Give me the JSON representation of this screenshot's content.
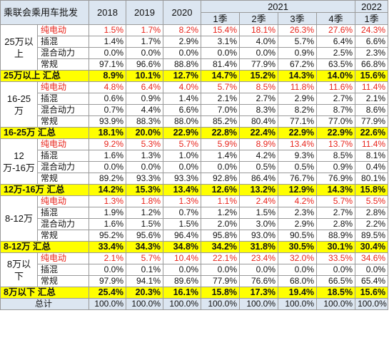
{
  "table": {
    "title": "乘联会乘用车批发",
    "years": [
      "2018",
      "2019",
      "2020"
    ],
    "year_2021": "2021",
    "year_2022": "2022",
    "quarters_2021": [
      "1季",
      "2季",
      "3季",
      "4季"
    ],
    "quarter_2022": "1季",
    "colors": {
      "highlight": "#ffff00",
      "header_bg": "#dce6f1",
      "red_text": "#e8241b",
      "border": "#9a9a9a"
    },
    "groups": [
      {
        "label": "25万以上",
        "rows": [
          {
            "label": "纯电动",
            "red": true,
            "values": [
              "1.5%",
              "1.7%",
              "8.2%",
              "15.4%",
              "18.1%",
              "26.3%",
              "27.6%",
              "24.3%"
            ]
          },
          {
            "label": "插混",
            "red": false,
            "values": [
              "1.4%",
              "1.7%",
              "2.9%",
              "3.1%",
              "4.0%",
              "5.7%",
              "6.4%",
              "6.6%"
            ]
          },
          {
            "label": "混合动力",
            "red": false,
            "values": [
              "0.0%",
              "0.0%",
              "0.0%",
              "0.0%",
              "0.0%",
              "0.9%",
              "2.5%",
              "2.3%"
            ]
          },
          {
            "label": "常规",
            "red": false,
            "values": [
              "97.1%",
              "96.6%",
              "88.8%",
              "81.4%",
              "77.9%",
              "67.2%",
              "63.5%",
              "66.8%"
            ]
          }
        ],
        "subtotal": {
          "label": "25万以上 汇总",
          "values": [
            "8.9%",
            "10.1%",
            "12.7%",
            "14.7%",
            "15.2%",
            "14.3%",
            "14.0%",
            "15.6%"
          ]
        }
      },
      {
        "label": "16-25万",
        "rows": [
          {
            "label": "纯电动",
            "red": true,
            "values": [
              "4.8%",
              "6.4%",
              "4.0%",
              "5.7%",
              "8.5%",
              "11.8%",
              "11.6%",
              "11.4%"
            ]
          },
          {
            "label": "插混",
            "red": false,
            "values": [
              "0.6%",
              "0.9%",
              "1.4%",
              "2.1%",
              "2.7%",
              "2.9%",
              "2.7%",
              "2.1%"
            ]
          },
          {
            "label": "混合动力",
            "red": false,
            "values": [
              "0.7%",
              "4.4%",
              "6.6%",
              "7.0%",
              "8.3%",
              "8.2%",
              "8.7%",
              "8.6%"
            ]
          },
          {
            "label": "常规",
            "red": false,
            "values": [
              "93.9%",
              "88.3%",
              "88.0%",
              "85.2%",
              "80.4%",
              "77.1%",
              "77.0%",
              "77.9%"
            ]
          }
        ],
        "subtotal": {
          "label": "16-25万 汇总",
          "values": [
            "18.1%",
            "20.0%",
            "22.9%",
            "22.8%",
            "22.4%",
            "22.9%",
            "22.9%",
            "22.6%"
          ]
        }
      },
      {
        "label": "12万-16万",
        "rows": [
          {
            "label": "纯电动",
            "red": true,
            "values": [
              "9.2%",
              "5.3%",
              "5.7%",
              "5.9%",
              "8.9%",
              "13.4%",
              "13.7%",
              "11.4%"
            ]
          },
          {
            "label": "插混",
            "red": false,
            "values": [
              "1.6%",
              "1.3%",
              "1.0%",
              "1.4%",
              "4.2%",
              "9.3%",
              "8.5%",
              "8.1%"
            ]
          },
          {
            "label": "混合动力",
            "red": false,
            "values": [
              "0.0%",
              "0.0%",
              "0.0%",
              "0.0%",
              "0.5%",
              "0.5%",
              "0.9%",
              "0.4%"
            ]
          },
          {
            "label": "常规",
            "red": false,
            "values": [
              "89.2%",
              "93.3%",
              "93.3%",
              "92.8%",
              "86.4%",
              "76.7%",
              "76.9%",
              "80.1%"
            ]
          }
        ],
        "subtotal": {
          "label": "12万-16万 汇总",
          "values": [
            "14.2%",
            "15.3%",
            "13.4%",
            "12.6%",
            "13.2%",
            "12.9%",
            "14.3%",
            "15.8%"
          ]
        }
      },
      {
        "label": "8-12万",
        "rows": [
          {
            "label": "纯电动",
            "red": true,
            "values": [
              "1.3%",
              "1.8%",
              "1.3%",
              "1.1%",
              "2.4%",
              "4.2%",
              "5.7%",
              "5.5%"
            ]
          },
          {
            "label": "插混",
            "red": false,
            "values": [
              "1.9%",
              "1.2%",
              "0.7%",
              "1.2%",
              "1.5%",
              "2.3%",
              "2.7%",
              "2.8%"
            ]
          },
          {
            "label": "混合动力",
            "red": false,
            "values": [
              "1.6%",
              "1.5%",
              "1.5%",
              "2.0%",
              "3.0%",
              "2.9%",
              "2.8%",
              "2.2%"
            ]
          },
          {
            "label": "常规",
            "red": false,
            "values": [
              "95.2%",
              "95.6%",
              "96.4%",
              "95.8%",
              "93.0%",
              "90.5%",
              "88.9%",
              "89.5%"
            ]
          }
        ],
        "subtotal": {
          "label": "8-12万 汇总",
          "values": [
            "33.4%",
            "34.3%",
            "34.8%",
            "34.2%",
            "31.8%",
            "30.5%",
            "30.1%",
            "30.4%"
          ]
        }
      },
      {
        "label": "8万以下",
        "rows": [
          {
            "label": "纯电动",
            "red": true,
            "values": [
              "2.1%",
              "5.7%",
              "10.4%",
              "22.1%",
              "23.4%",
              "32.0%",
              "33.5%",
              "34.6%"
            ]
          },
          {
            "label": "插混",
            "red": false,
            "values": [
              "0.0%",
              "0.1%",
              "0.0%",
              "0.0%",
              "0.0%",
              "0.0%",
              "0.0%",
              "0.0%"
            ]
          },
          {
            "label": "常规",
            "red": false,
            "values": [
              "97.9%",
              "94.1%",
              "89.6%",
              "77.9%",
              "76.6%",
              "68.0%",
              "66.5%",
              "65.4%"
            ]
          }
        ],
        "subtotal": {
          "label": "8万以下 汇总",
          "values": [
            "25.4%",
            "20.3%",
            "16.1%",
            "15.8%",
            "17.3%",
            "19.4%",
            "18.5%",
            "15.6%"
          ]
        }
      }
    ],
    "total": {
      "label": "总计",
      "values": [
        "100.0%",
        "100.0%",
        "100.0%",
        "100.0%",
        "100.0%",
        "100.0%",
        "100.0%",
        "100.0%"
      ]
    }
  }
}
